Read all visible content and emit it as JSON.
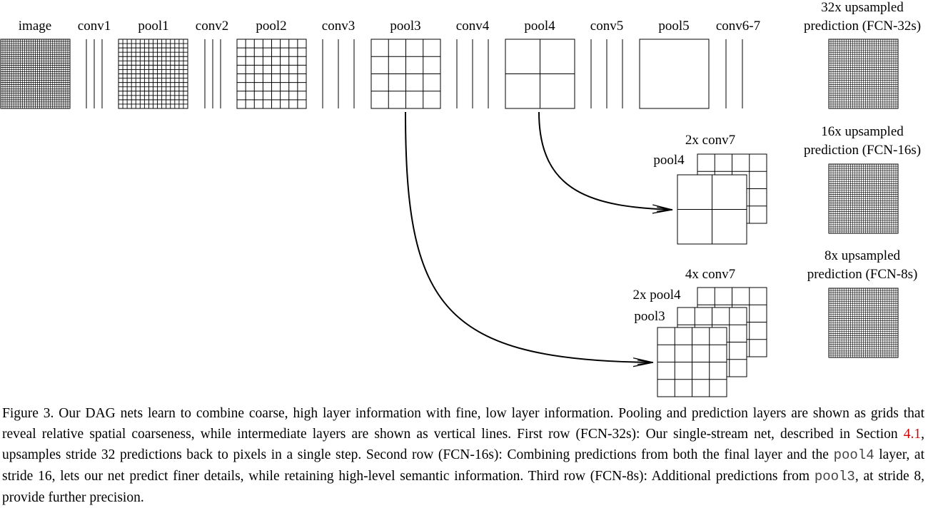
{
  "figure": {
    "layer_labels": {
      "image": "image",
      "conv1": "conv1",
      "pool1": "pool1",
      "conv2": "conv2",
      "pool2": "pool2",
      "conv3": "conv3",
      "pool3": "pool3",
      "conv4": "conv4",
      "pool4": "pool4",
      "conv5": "conv5",
      "pool5": "pool5",
      "conv6_7": "conv6-7"
    },
    "outputs": [
      {
        "line1": "32x upsampled",
        "line2": "prediction (FCN-32s)"
      },
      {
        "line1": "16x upsampled",
        "line2": "prediction (FCN-16s)"
      },
      {
        "line1": "8x upsampled",
        "line2": "prediction (FCN-8s)"
      }
    ],
    "fcn16_labels": {
      "upsampled": "2x conv7",
      "skip": "pool4"
    },
    "fcn8_labels": {
      "upsampled": "4x conv7",
      "mid": "2x pool4",
      "skip": "pool3"
    }
  },
  "caption": {
    "p1": "Figure 3.  Our DAG nets learn to combine coarse, high layer information with fine, low layer information. Pooling and prediction layers are shown as grids that reveal relative spatial coarseness, while intermediate layers are shown as vertical lines. First row (FCN-32s): Our single-stream net, described in Section ",
    "ref": "4.1",
    "p2": ", upsamples stride 32 predictions back to pixels in a single step.  Second row (FCN-16s):  Combining predictions from both the final layer and the ",
    "code1": "pool4",
    "p3": " layer, at stride 16, lets our net predict finer details, while retaining high-level semantic information. Third row (FCN-8s): Additional predictions from ",
    "code2": "pool3",
    "p4": ", at stride 8, provide further precision."
  }
}
